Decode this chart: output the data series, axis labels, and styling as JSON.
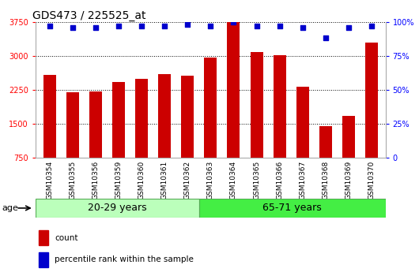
{
  "title": "GDS473 / 225525_at",
  "categories": [
    "GSM10354",
    "GSM10355",
    "GSM10356",
    "GSM10359",
    "GSM10360",
    "GSM10361",
    "GSM10362",
    "GSM10363",
    "GSM10364",
    "GSM10365",
    "GSM10366",
    "GSM10367",
    "GSM10368",
    "GSM10369",
    "GSM10370"
  ],
  "bar_values": [
    2580,
    2190,
    2210,
    2420,
    2490,
    2600,
    2560,
    2960,
    3740,
    3080,
    3020,
    2310,
    1440,
    1680,
    3290
  ],
  "percentile_values": [
    97,
    96,
    96,
    97,
    97,
    97,
    98,
    97,
    100,
    97,
    97,
    96,
    88,
    96,
    97
  ],
  "group1_label": "20-29 years",
  "group1_count": 7,
  "group2_label": "65-71 years",
  "group2_count": 8,
  "age_label": "age",
  "ylim_left": [
    750,
    3750
  ],
  "ylim_right": [
    0,
    100
  ],
  "yticks_left": [
    750,
    1500,
    2250,
    3000,
    3750
  ],
  "yticks_right": [
    0,
    25,
    50,
    75,
    100
  ],
  "bar_color": "#cc0000",
  "dot_color": "#0000cc",
  "group1_color": "#bbffbb",
  "group2_color": "#44ee44",
  "bar_bg_color": "#cccccc",
  "plot_bg_color": "#ffffff",
  "legend_count_label": "count",
  "legend_pct_label": "percentile rank within the sample",
  "title_fontsize": 10,
  "tick_fontsize": 7,
  "group_fontsize": 9,
  "dotted_grid_ticks": [
    1500,
    2250,
    3000,
    3750
  ]
}
